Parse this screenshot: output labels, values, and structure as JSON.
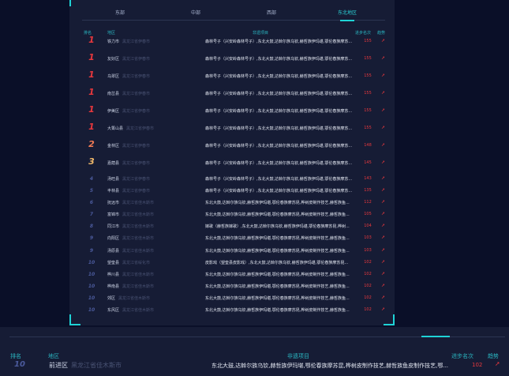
{
  "tabs": [
    "东部",
    "中部",
    "西部",
    "东北地区"
  ],
  "active_tab": 3,
  "columns": {
    "rank": "排名",
    "region": "地区",
    "project": "非遗项目",
    "progress": "进步名次",
    "trend": "趋势"
  },
  "rows": [
    {
      "rank": "1",
      "name": "铁力市",
      "city": "黑龙江省伊春市",
      "project": "森林号子（兴安岭森林号子）,东北大鼓,达斡尔族乌钦,赫哲族伊玛堪,鄂伦春族摩苏...",
      "value": "155"
    },
    {
      "rank": "1",
      "name": "友好区",
      "city": "黑龙江省伊春市",
      "project": "森林号子（兴安岭森林号子）,东北大鼓,达斡尔族乌钦,赫哲族伊玛堪,鄂伦春族摩苏...",
      "value": "155"
    },
    {
      "rank": "1",
      "name": "乌翠区",
      "city": "黑龙江省伊春市",
      "project": "森林号子（兴安岭森林号子）,东北大鼓,达斡尔族乌钦,赫哲族伊玛堪,鄂伦春族摩苏...",
      "value": "155"
    },
    {
      "rank": "1",
      "name": "南岔县",
      "city": "黑龙江省伊春市",
      "project": "森林号子（兴安岭森林号子）,东北大鼓,达斡尔族乌钦,赫哲族伊玛堪,鄂伦春族摩苏...",
      "value": "155"
    },
    {
      "rank": "1",
      "name": "伊美区",
      "city": "黑龙江省伊春市",
      "project": "森林号子（兴安岭森林号子）,东北大鼓,达斡尔族乌钦,赫哲族伊玛堪,鄂伦春族摩苏...",
      "value": "155"
    },
    {
      "rank": "1",
      "name": "大箐山县",
      "city": "黑龙江省伊春市",
      "project": "森林号子（兴安岭森林号子）,东北大鼓,达斡尔族乌钦,赫哲族伊玛堪,鄂伦春族摩苏...",
      "value": "155"
    },
    {
      "rank": "2",
      "name": "金林区",
      "city": "黑龙江省伊春市",
      "project": "森林号子（兴安岭森林号子）,东北大鼓,达斡尔族乌钦,赫哲族伊玛堪,鄂伦春族摩苏...",
      "value": "148"
    },
    {
      "rank": "3",
      "name": "嘉荫县",
      "city": "黑龙江省伊春市",
      "project": "森林号子（兴安岭森林号子）,东北大鼓,达斡尔族乌钦,赫哲族伊玛堪,鄂伦春族摩苏...",
      "value": "145"
    },
    {
      "rank": "4",
      "name": "汤旺县",
      "city": "黑龙江省伊春市",
      "project": "森林号子（兴安岭森林号子）,东北大鼓,达斡尔族乌钦,赫哲族伊玛堪,鄂伦春族摩苏...",
      "value": "143"
    },
    {
      "rank": "5",
      "name": "丰林县",
      "city": "黑龙江省伊春市",
      "project": "森林号子（兴安岭森林号子）,东北大鼓,达斡尔族乌钦,赫哲族伊玛堪,鄂伦春族摩苏...",
      "value": "135"
    },
    {
      "rank": "6",
      "name": "抚远市",
      "city": "黑龙江省佳木斯市",
      "project": "东北大鼓,达斡尔族乌钦,赫哲族伊玛堪,鄂伦春族摩苏昆,桦树皮制作技艺,赫哲族鱼...",
      "value": "112"
    },
    {
      "rank": "7",
      "name": "富锦市",
      "city": "黑龙江省佳木斯市",
      "project": "东北大鼓,达斡尔族乌钦,赫哲族伊玛堪,鄂伦春族摩苏昆,桦树皮制作技艺,赫哲族鱼...",
      "value": "105"
    },
    {
      "rank": "8",
      "name": "同江市",
      "city": "黑龙江省佳木斯市",
      "project": "嫁歌（赫哲族嫁歌）,东北大鼓,达斡尔族乌钦,赫哲族伊玛堪,鄂伦春族摩苏昆,桦树...",
      "value": "104"
    },
    {
      "rank": "9",
      "name": "向阳区",
      "city": "黑龙江省佳木斯市",
      "project": "东北大鼓,达斡尔族乌钦,赫哲族伊玛堪,鄂伦春族摩苏昆,桦树皮制作技艺,赫哲族鱼...",
      "value": "103"
    },
    {
      "rank": "9",
      "name": "汤原县",
      "city": "黑龙江省佳木斯市",
      "project": "东北大鼓,达斡尔族乌钦,赫哲族伊玛堪,鄂伦春族摩苏昆,桦树皮制作技艺,赫哲族鱼...",
      "value": "103"
    },
    {
      "rank": "10",
      "name": "望奎县",
      "city": "黑龙江省绥化市",
      "project": "皮影戏（望奎县皮影戏）,东北大鼓,达斡尔族乌钦,赫哲族伊玛堪,鄂伦春族摩苏昆...",
      "value": "102"
    },
    {
      "rank": "10",
      "name": "桦川县",
      "city": "黑龙江省佳木斯市",
      "project": "东北大鼓,达斡尔族乌钦,赫哲族伊玛堪,鄂伦春族摩苏昆,桦树皮制作技艺,赫哲族鱼...",
      "value": "102"
    },
    {
      "rank": "10",
      "name": "桦南县",
      "city": "黑龙江省佳木斯市",
      "project": "东北大鼓,达斡尔族乌钦,赫哲族伊玛堪,鄂伦春族摩苏昆,桦树皮制作技艺,赫哲族鱼...",
      "value": "102"
    },
    {
      "rank": "10",
      "name": "郊区",
      "city": "黑龙江省佳木斯市",
      "project": "东北大鼓,达斡尔族乌钦,赫哲族伊玛堪,鄂伦春族摩苏昆,桦树皮制作技艺,赫哲族鱼...",
      "value": "102"
    },
    {
      "rank": "10",
      "name": "东风区",
      "city": "黑龙江省佳木斯市",
      "project": "东北大鼓,达斡尔族乌钦,赫哲族伊玛堪,鄂伦春族摩苏昆,桦树皮制作技艺,赫哲族鱼...",
      "value": "102"
    }
  ],
  "bottom_row": {
    "rank": "10",
    "name": "前进区",
    "city": "黑龙江省佳木斯市",
    "project": "东北大鼓,达斡尔族乌钦,赫哲族伊玛堪,鄂伦春族摩苏昆,桦树皮制作技艺,赫哲族鱼皮制作技艺,鄂...",
    "value": "102"
  },
  "trend_icon": "up-arrow-icon",
  "colors": {
    "accent": "#1fd3d6",
    "value": "#e8383d",
    "rank1": "#e8383d",
    "rank2": "#ef7a55",
    "rank3": "#f0b86a"
  }
}
